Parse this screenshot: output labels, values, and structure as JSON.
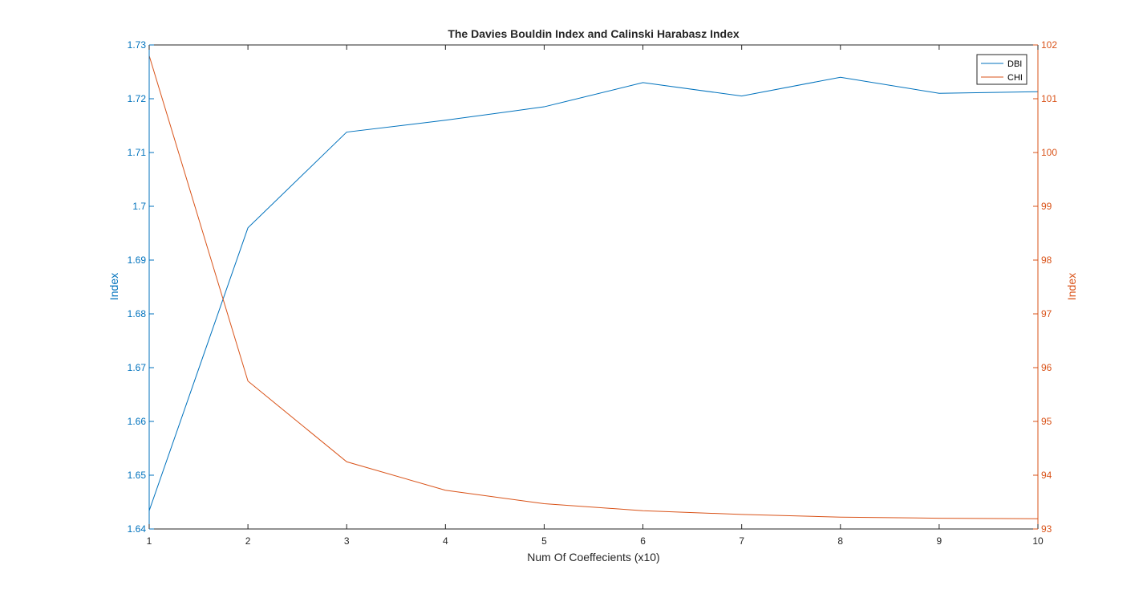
{
  "chart_data": {
    "type": "line",
    "title": "The Davies Bouldin Index and Calinski Harabasz Index",
    "xlabel": "Num Of Coeffecients (x10)",
    "x": [
      1,
      2,
      3,
      4,
      5,
      6,
      7,
      8,
      9,
      10
    ],
    "x_ticks": [
      "1",
      "2",
      "3",
      "4",
      "5",
      "6",
      "7",
      "8",
      "9",
      "10"
    ],
    "xlim": [
      1,
      10
    ],
    "left_axis": {
      "label": "Index",
      "ylim": [
        1.64,
        1.73
      ],
      "ticks": [
        1.64,
        1.65,
        1.66,
        1.67,
        1.68,
        1.69,
        1.7,
        1.71,
        1.72,
        1.73
      ],
      "tick_labels": [
        "1.64",
        "1.65",
        "1.66",
        "1.67",
        "1.68",
        "1.69",
        "1.7",
        "1.71",
        "1.72",
        "1.73"
      ],
      "color": "#0072BD"
    },
    "right_axis": {
      "label": "Index",
      "ylim": [
        93,
        102
      ],
      "ticks": [
        93,
        94,
        95,
        96,
        97,
        98,
        99,
        100,
        101,
        102
      ],
      "tick_labels": [
        "93",
        "94",
        "95",
        "96",
        "97",
        "98",
        "99",
        "100",
        "101",
        "102"
      ],
      "color": "#D95319"
    },
    "series": [
      {
        "name": "DBI",
        "axis": "left",
        "color": "#0072BD",
        "values": [
          1.6434,
          1.696,
          1.7138,
          1.716,
          1.7185,
          1.723,
          1.7205,
          1.724,
          1.721,
          1.7213
        ]
      },
      {
        "name": "CHI",
        "axis": "right",
        "color": "#D95319",
        "values": [
          101.8,
          95.75,
          94.25,
          93.72,
          93.47,
          93.34,
          93.27,
          93.22,
          93.2,
          93.19
        ]
      }
    ],
    "legend": {
      "placement": "top-right",
      "entries": [
        "DBI",
        "CHI"
      ]
    },
    "grid": false
  }
}
